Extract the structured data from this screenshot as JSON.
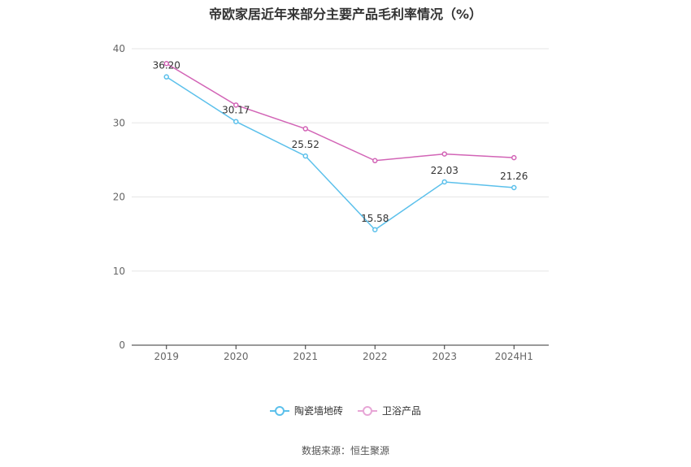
{
  "chart_data": {
    "type": "line",
    "title": "帝欧家居近年来部分主要产品毛利率情况（%）",
    "categories": [
      "2019",
      "2020",
      "2021",
      "2022",
      "2023",
      "2024H1"
    ],
    "ylim": [
      0,
      40
    ],
    "yticks": [
      0,
      10,
      20,
      30,
      40
    ],
    "grid": true,
    "legend_position": "bottom",
    "series": [
      {
        "name": "陶瓷墙地砖",
        "color": "#5bc0eb",
        "values": [
          36.2,
          30.17,
          25.52,
          15.58,
          22.03,
          21.26
        ],
        "labels": [
          "36.20",
          "30.17",
          "25.52",
          "15.58",
          "22.03",
          "21.26"
        ]
      },
      {
        "name": "卫浴产品",
        "color": "#d264b6",
        "values": [
          38.0,
          32.4,
          29.2,
          24.9,
          25.8,
          25.3
        ]
      }
    ]
  },
  "source": "数据来源：恒生聚源"
}
